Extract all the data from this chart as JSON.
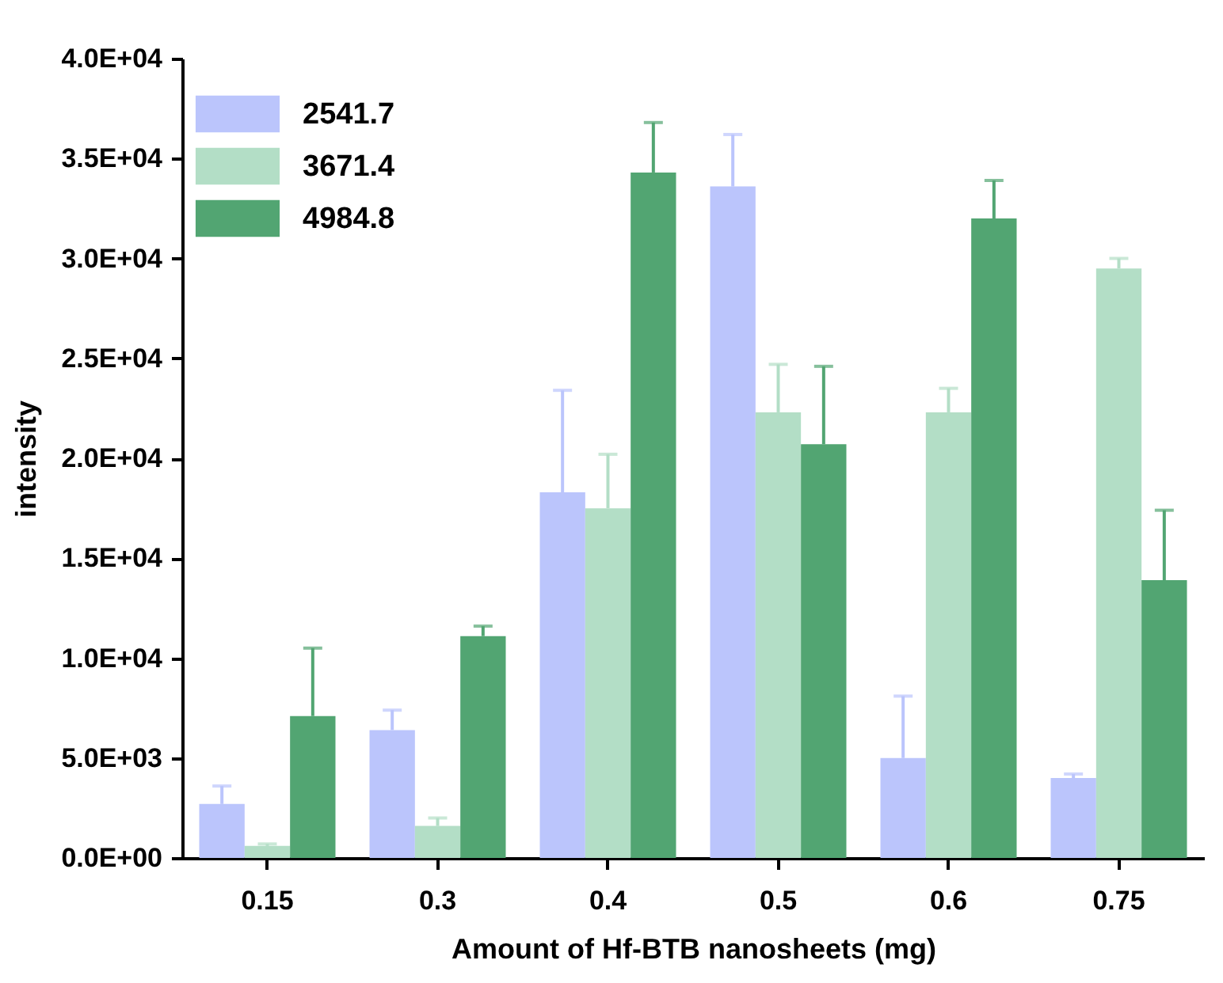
{
  "chart_data": {
    "type": "bar",
    "xlabel": "Amount of Hf-BTB nanosheets (mg)",
    "ylabel": "intensity",
    "categories": [
      "0.15",
      "0.3",
      "0.4",
      "0.5",
      "0.6",
      "0.75"
    ],
    "series": [
      {
        "name": "2541.7",
        "color": "#bbc5fc",
        "values": [
          2700,
          6400,
          18300,
          33600,
          5000,
          4000
        ],
        "errors": [
          900,
          1000,
          5100,
          2600,
          3100,
          200
        ]
      },
      {
        "name": "3671.4",
        "color": "#b3dec6",
        "values": [
          600,
          1600,
          17500,
          22300,
          22300,
          29500
        ],
        "errors": [
          100,
          400,
          2700,
          2400,
          1200,
          500
        ]
      },
      {
        "name": "4984.8",
        "color": "#52a572",
        "values": [
          7100,
          11100,
          34300,
          20700,
          32000,
          13900
        ],
        "errors": [
          3400,
          500,
          2500,
          3900,
          1900,
          3500
        ]
      }
    ],
    "ylim": [
      0,
      40000
    ],
    "yticks": [
      {
        "value": 0,
        "label": "0.0E+00"
      },
      {
        "value": 5000,
        "label": "5.0E+03"
      },
      {
        "value": 10000,
        "label": "1.0E+04"
      },
      {
        "value": 15000,
        "label": "1.5E+04"
      },
      {
        "value": 20000,
        "label": "2.0E+04"
      },
      {
        "value": 25000,
        "label": "2.5E+04"
      },
      {
        "value": 30000,
        "label": "3.0E+04"
      },
      {
        "value": 35000,
        "label": "3.5E+04"
      },
      {
        "value": 40000,
        "label": "4.0E+04"
      }
    ],
    "grid": false,
    "legend": "top left"
  }
}
